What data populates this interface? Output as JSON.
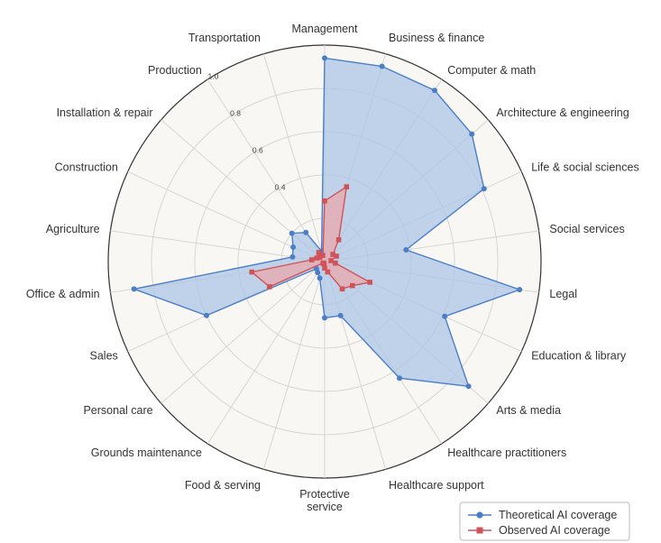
{
  "chart_data": {
    "type": "radar",
    "categories": [
      "Management",
      "Business & finance",
      "Computer & math",
      "Architecture & engineering",
      "Life & social sciences",
      "Social services",
      "Legal",
      "Education & library",
      "Arts & media",
      "Healthcare practitioners",
      "Healthcare support",
      "Protective service",
      "Food & serving",
      "Grounds maintenance",
      "Personal care",
      "Sales",
      "Office & admin",
      "Agriculture",
      "Construction",
      "Installation & repair",
      "Production",
      "Transportation"
    ],
    "series": [
      {
        "name": "Theoretical AI coverage",
        "color": "#4a7fc8",
        "fill": "#a9c3e6",
        "marker": "circle",
        "values": [
          0.94,
          0.94,
          0.94,
          0.9,
          0.81,
          0.38,
          0.91,
          0.61,
          0.88,
          0.64,
          0.26,
          0.26,
          0.08,
          0.06,
          0.05,
          0.6,
          0.89,
          0.15,
          0.16,
          0.2,
          0.16,
          0.05
        ]
      },
      {
        "name": "Observed AI coverage",
        "color": "#d0535a",
        "fill": "#e9a8ab",
        "marker": "square",
        "values": [
          0.28,
          0.36,
          0.12,
          0.05,
          0.06,
          0.03,
          0.05,
          0.23,
          0.17,
          0.15,
          0.05,
          0.03,
          0.01,
          0.01,
          0.01,
          0.28,
          0.34,
          0.06,
          0.04,
          0.03,
          0.05,
          0.03
        ]
      }
    ],
    "radial_ticks": [
      "0.4",
      "0.6",
      "0.8",
      "1.0"
    ],
    "tick_values": [
      0.4,
      0.6,
      0.8,
      1.0
    ],
    "range": [
      0,
      1
    ],
    "grid": true,
    "legend_position": "bottom-right",
    "background": "#f8f7f4",
    "grid_color": "#d8d6d2"
  }
}
